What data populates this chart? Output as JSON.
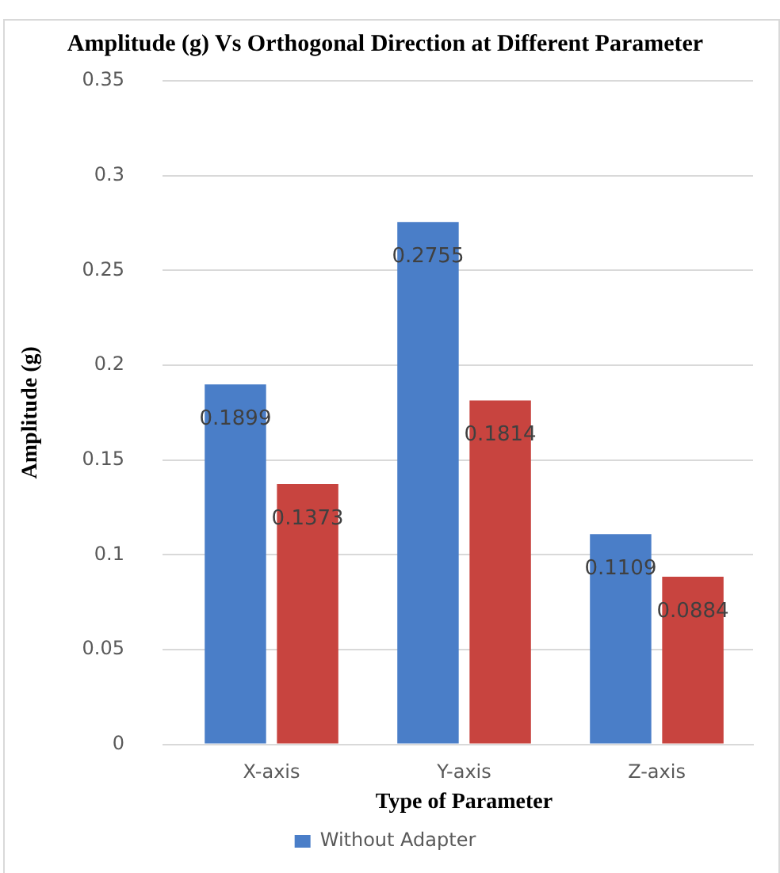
{
  "chart_data": {
    "type": "bar",
    "title": "Amplitude (g) Vs Orthogonal Direction at Different Parameter",
    "xlabel": "Type of Parameter",
    "ylabel": "Amplitude (g)",
    "categories": [
      "X-axis",
      "Y-axis",
      "Z-axis"
    ],
    "series": [
      {
        "name": "Without Adapter",
        "color": "#4a7ec8",
        "values": [
          0.1899,
          0.2755,
          0.1109
        ]
      },
      {
        "color": "#c8443f",
        "values": [
          0.1373,
          0.1814,
          0.0884
        ]
      }
    ],
    "ylim": [
      0,
      0.35
    ],
    "yticks": [
      0,
      0.05,
      0.1,
      0.15,
      0.2,
      0.25,
      0.3,
      0.35
    ],
    "grid": "y",
    "legend": "bottom",
    "data_labels": true
  }
}
